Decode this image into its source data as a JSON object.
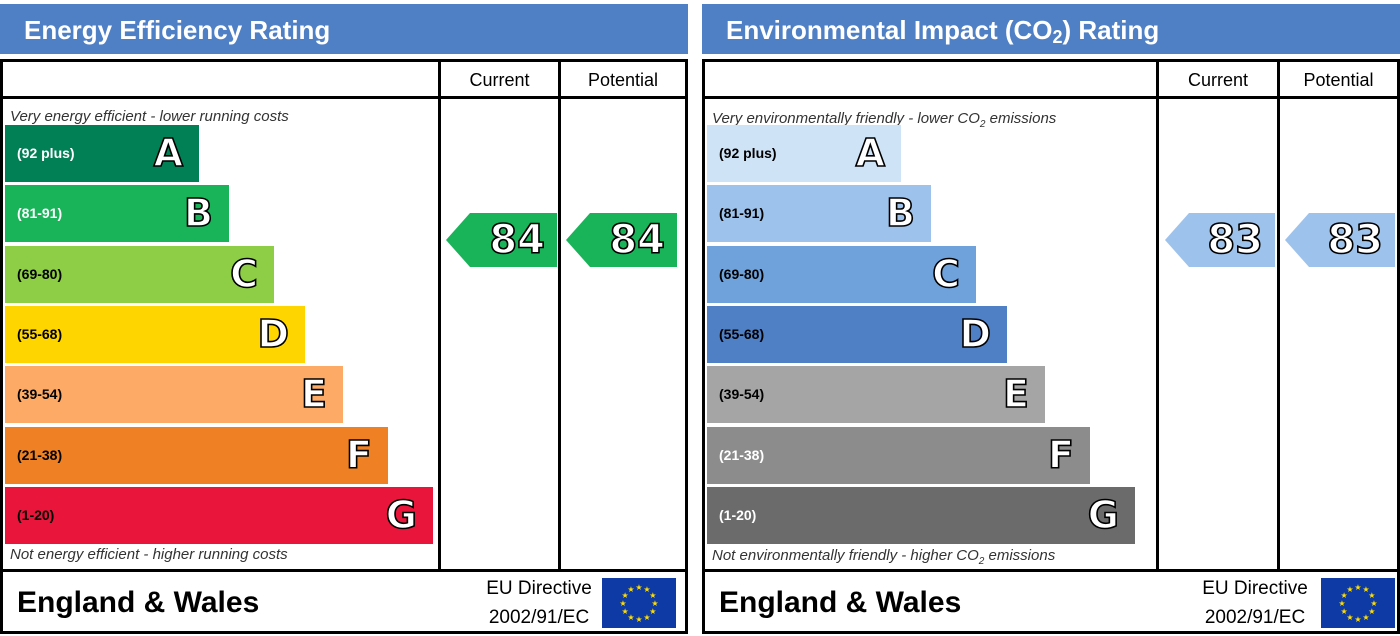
{
  "chart_data": [
    {
      "type": "table",
      "title": "Energy Efficiency Rating",
      "columns": [
        "Current",
        "Potential"
      ],
      "note_top": "Very energy efficient - lower running costs",
      "note_bottom": "Not energy efficient - higher running costs",
      "bands": [
        {
          "letter": "A",
          "range": "(92 plus)",
          "color": "#008054",
          "text_color": "#ffffff"
        },
        {
          "letter": "B",
          "range": "(81-91)",
          "color": "#19b459",
          "text_color": "#ffffff"
        },
        {
          "letter": "C",
          "range": "(69-80)",
          "color": "#8dce46",
          "text_color": "#000000"
        },
        {
          "letter": "D",
          "range": "(55-68)",
          "color": "#ffd500",
          "text_color": "#000000"
        },
        {
          "letter": "E",
          "range": "(39-54)",
          "color": "#fcaa65",
          "text_color": "#000000"
        },
        {
          "letter": "F",
          "range": "(21-38)",
          "color": "#ef8023",
          "text_color": "#000000"
        },
        {
          "letter": "G",
          "range": "(1-20)",
          "color": "#e9153b",
          "text_color": "#000000"
        }
      ],
      "current": {
        "value": "84",
        "band": "B",
        "color": "#19b459"
      },
      "potential": {
        "value": "84",
        "band": "B",
        "color": "#19b459"
      },
      "footer_region": "England & Wales",
      "eu_line1": "EU Directive",
      "eu_line2": "2002/91/EC"
    },
    {
      "type": "table",
      "title": "Environmental Impact (CO",
      "title_sub": "2",
      "title_suffix": ") Rating",
      "columns": [
        "Current",
        "Potential"
      ],
      "note_top": "Very environmentally friendly - lower CO",
      "note_top_sub": "2",
      "note_top_suffix": " emissions",
      "note_bottom": "Not environmentally friendly - higher CO",
      "note_bottom_sub": "2",
      "note_bottom_suffix": " emissions",
      "bands": [
        {
          "letter": "A",
          "range": "(92 plus)",
          "color": "#cfe3f7",
          "text_color": "#000000"
        },
        {
          "letter": "B",
          "range": "(81-91)",
          "color": "#9dc2ec",
          "text_color": "#000000"
        },
        {
          "letter": "C",
          "range": "(69-80)",
          "color": "#6fa2db",
          "text_color": "#000000"
        },
        {
          "letter": "D",
          "range": "(55-68)",
          "color": "#4f7fc4",
          "text_color": "#000000"
        },
        {
          "letter": "E",
          "range": "(39-54)",
          "color": "#a5a5a5",
          "text_color": "#000000"
        },
        {
          "letter": "F",
          "range": "(21-38)",
          "color": "#8c8c8c",
          "text_color": "#ffffff"
        },
        {
          "letter": "G",
          "range": "(1-20)",
          "color": "#6b6b6b",
          "text_color": "#ffffff"
        }
      ],
      "current": {
        "value": "83",
        "band": "B",
        "color": "#9dc2ec"
      },
      "potential": {
        "value": "83",
        "band": "B",
        "color": "#9dc2ec"
      },
      "footer_region": "England & Wales",
      "eu_line1": "EU Directive",
      "eu_line2": "2002/91/EC"
    }
  ]
}
